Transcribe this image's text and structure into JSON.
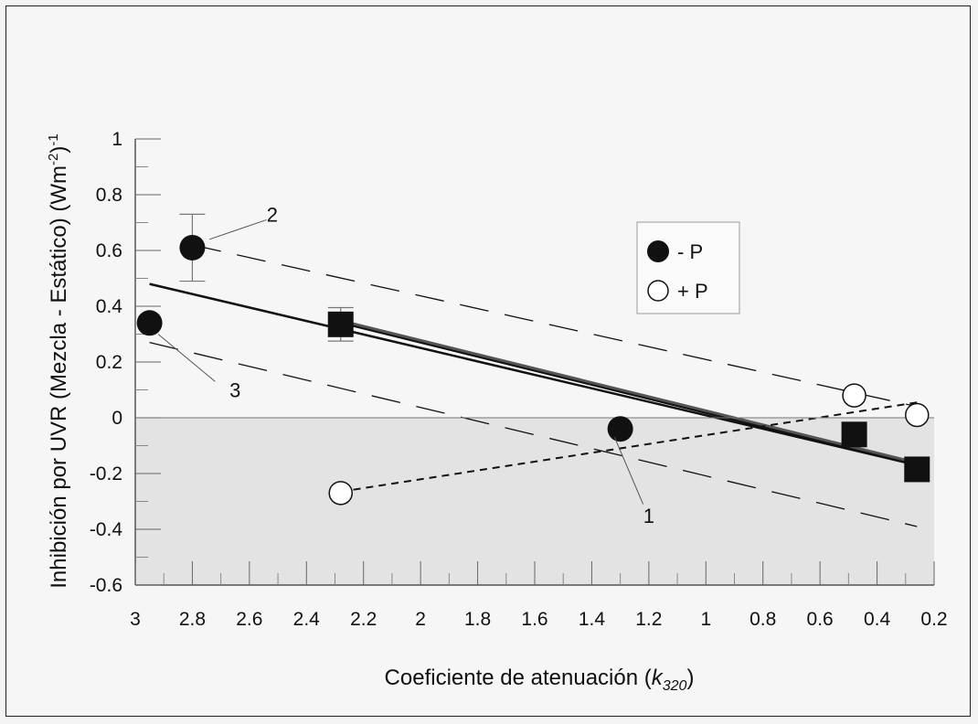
{
  "chart_data": {
    "type": "scatter",
    "xlabel_main": "Coeficiente de atenuación (",
    "xlabel_k": "k",
    "xlabel_sub": "320",
    "xlabel_close": ")",
    "ylabel_main": "Inhibición por UVR (Mezcla - Estático) (Wm",
    "ylabel_sup1": "-2",
    "ylabel_mid": ")",
    "ylabel_sup2": "-1",
    "x_reversed": true,
    "xlim": [
      3,
      0.2
    ],
    "ylim": [
      -0.6,
      1
    ],
    "x_ticks": [
      3,
      2.8,
      2.6,
      2.4,
      2.2,
      2,
      1.8,
      1.6,
      1.4,
      1.2,
      1,
      0.8,
      0.6,
      0.4,
      0.2
    ],
    "x_tick_labels": [
      "3",
      "2.8",
      "2.6",
      "2.4",
      "2.2",
      "2",
      "1.8",
      "1.6",
      "1.4",
      "1.2",
      "1",
      "0.8",
      "0.6",
      "0.4",
      "0.2"
    ],
    "y_ticks": [
      1,
      0.8,
      0.6,
      0.4,
      0.2,
      0,
      -0.2,
      -0.4,
      -0.6
    ],
    "y_tick_labels": [
      "1",
      "0.8",
      "0.6",
      "0.4",
      "0.2",
      "0",
      "-0.2",
      "-0.4",
      "-0.6"
    ],
    "shaded_region": {
      "y_from": -0.6,
      "y_to": 0,
      "color": "#e3e3e3"
    },
    "series": [
      {
        "name": "- P",
        "marker": "filled-circle",
        "color": "#111111",
        "points": [
          {
            "x": 2.95,
            "y": 0.34
          },
          {
            "x": 2.8,
            "y": 0.61,
            "err": 0.12
          },
          {
            "x": 1.3,
            "y": -0.04
          }
        ]
      },
      {
        "name": "+ P",
        "marker": "open-circle",
        "color": "#111111",
        "points": [
          {
            "x": 2.28,
            "y": -0.27
          },
          {
            "x": 0.48,
            "y": 0.08
          },
          {
            "x": 0.26,
            "y": 0.01
          }
        ]
      },
      {
        "marker": "filled-square",
        "color": "#111111",
        "points": [
          {
            "x": 2.28,
            "y": 0.335,
            "err": 0.06
          },
          {
            "x": 0.48,
            "y": -0.06
          },
          {
            "x": 0.26,
            "y": -0.185
          }
        ]
      }
    ],
    "lines": [
      {
        "kind": "regression",
        "style": "solid",
        "width": 2.5,
        "x1": 2.95,
        "y1": 0.48,
        "x2": 0.26,
        "y2": -0.17
      },
      {
        "kind": "fit-squares",
        "style": "solid-double",
        "width": 2.5,
        "x1": 2.28,
        "y1": 0.34,
        "x2": 0.26,
        "y2": -0.17
      },
      {
        "kind": "upper-bound",
        "style": "long-dash",
        "x1": 2.8,
        "y1": 0.62,
        "x2": 0.26,
        "y2": 0.04
      },
      {
        "kind": "lower-bound",
        "style": "long-dash",
        "x1": 2.95,
        "y1": 0.27,
        "x2": 0.26,
        "y2": -0.39
      },
      {
        "kind": "plus-P-fit",
        "style": "short-dash",
        "x1": 2.28,
        "y1": -0.265,
        "x2": 0.26,
        "y2": 0.055
      }
    ],
    "annotations": [
      {
        "label": "1",
        "tx": 1.2,
        "ty": -0.35,
        "px": 1.32,
        "py": -0.07,
        "lx": 1.22,
        "ly": -0.31
      },
      {
        "label": "2",
        "tx": 2.52,
        "ty": 0.73,
        "px": 2.74,
        "py": 0.64,
        "lx": 2.54,
        "ly": 0.71
      },
      {
        "label": "3",
        "tx": 2.65,
        "ty": 0.1,
        "px": 2.92,
        "py": 0.3,
        "lx": 2.72,
        "ly": 0.13
      }
    ],
    "legend": {
      "placement": "top-right",
      "entries": [
        {
          "label": "- P",
          "marker": "filled-circle"
        },
        {
          "label": "+ P",
          "marker": "open-circle"
        }
      ]
    }
  }
}
